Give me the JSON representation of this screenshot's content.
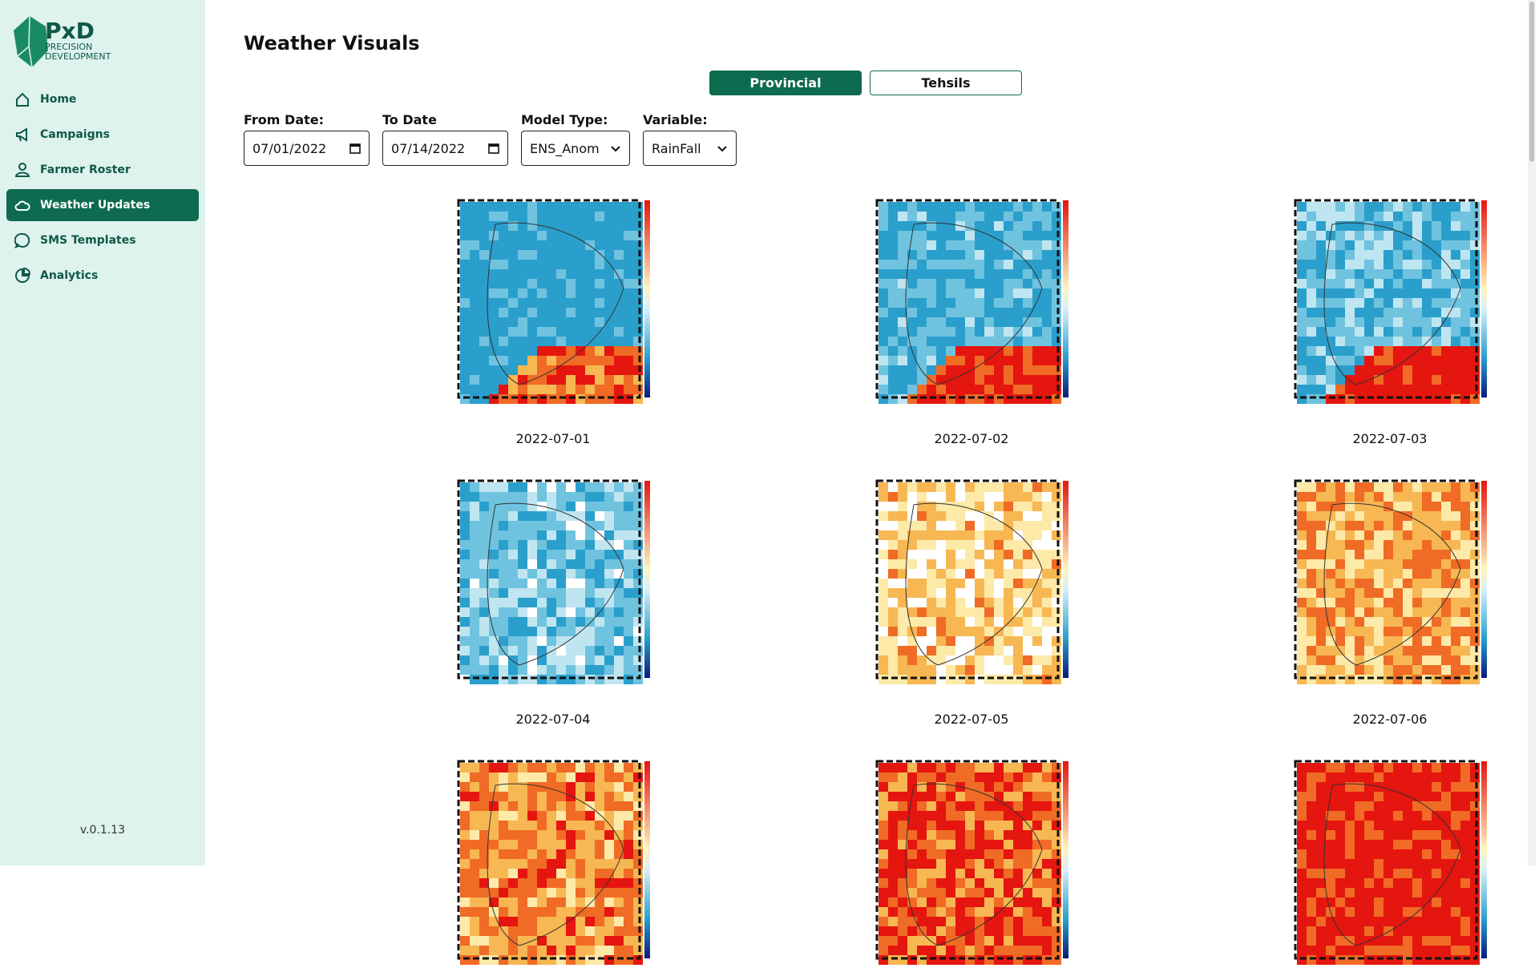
{
  "sidebar": {
    "logo": {
      "title": "PxD",
      "line_1": "PRECISION",
      "line_2": "DEVELOPMENT"
    },
    "nav": [
      {
        "label": "Home"
      },
      {
        "label": "Campaigns"
      },
      {
        "label": "Farmer Roster"
      },
      {
        "label": "Weather Updates",
        "active": true
      },
      {
        "label": "SMS Templates"
      },
      {
        "label": "Analytics"
      }
    ],
    "version": "v.0.1.13"
  },
  "header": {
    "title": "Weather Visuals"
  },
  "tabs": [
    {
      "label": "Provincial",
      "active": true
    },
    {
      "label": "Tehsils",
      "active": false
    }
  ],
  "filters": [
    {
      "label": "From Date:",
      "value": "07/01/2022",
      "kind": "date"
    },
    {
      "label": "To Date",
      "value": "07/14/2022",
      "kind": "date"
    },
    {
      "label": "Model Type:",
      "value": "ENS_Anom",
      "kind": "select"
    },
    {
      "label": "Variable:",
      "value": "RainFall",
      "kind": "select"
    }
  ],
  "images": [
    {
      "caption": "2022-07-01"
    },
    {
      "caption": "2022-07-02"
    },
    {
      "caption": "2022-07-03"
    },
    {
      "caption": "2022-07-04"
    },
    {
      "caption": "2022-07-05"
    },
    {
      "caption": "2022-07-06"
    }
  ]
}
